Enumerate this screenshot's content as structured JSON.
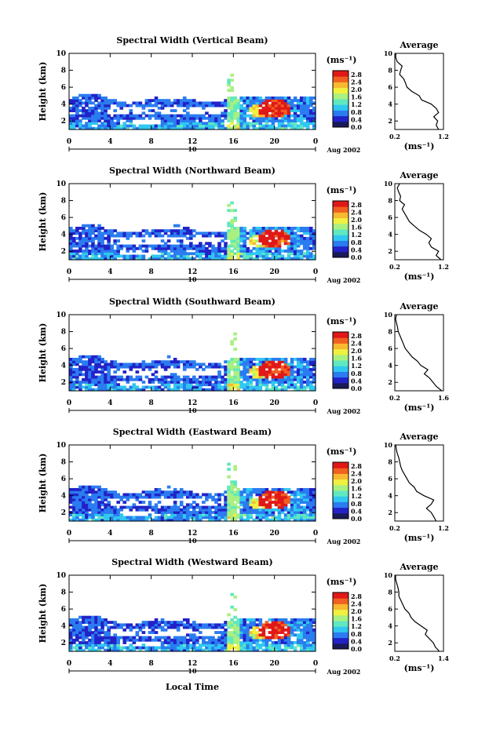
{
  "chart_data": {
    "type": "heatmap",
    "shared": {
      "x_label": "Local Time",
      "x_ticks": [
        "0",
        "4",
        "8",
        "12",
        "16",
        "20",
        "0"
      ],
      "x_range": [
        0,
        24
      ],
      "date_label": "10",
      "month_label": "Aug 2002",
      "y_label": "Height (km)",
      "y_ticks": [
        "2",
        "4",
        "6",
        "8",
        "10"
      ],
      "y_range": [
        1,
        10
      ],
      "colorbar_unit": "(ms⁻¹)",
      "colorbar_ticks": [
        "2.8",
        "2.4",
        "2.0",
        "1.6",
        "1.2",
        "0.8",
        "0.4",
        "0.0"
      ],
      "colorbar_range": [
        0,
        3.0
      ],
      "colors": [
        "#1a1a5a",
        "#2222c8",
        "#2a7cf0",
        "#30c8f0",
        "#60e8c0",
        "#a8f080",
        "#f0f040",
        "#f8b830",
        "#f06020",
        "#e01818"
      ],
      "profile_title": "Average",
      "profile_xlabel": "(ms⁻¹)"
    },
    "panels": [
      {
        "title": "Spectral Width (Vertical Beam)",
        "profile_xticks": [
          "0.2",
          "1.2"
        ],
        "profile_xrange": [
          0.2,
          1.2
        ],
        "profile": {
          "height": [
            1.0,
            1.5,
            2.0,
            2.5,
            3.0,
            3.5,
            4.0,
            4.5,
            5.0,
            5.5,
            6.0,
            6.5,
            7.0,
            7.5,
            8.0,
            8.5,
            9.0,
            9.5,
            10.0
          ],
          "value": [
            1.1,
            1.05,
            1.08,
            1.0,
            1.1,
            1.05,
            0.95,
            0.75,
            0.7,
            0.55,
            0.45,
            0.42,
            0.38,
            0.3,
            0.32,
            0.35,
            0.25,
            0.22,
            0.22
          ]
        }
      },
      {
        "title": "Spectral Width (Northward Beam)",
        "profile_xticks": [
          "0.2",
          "1.2"
        ],
        "profile_xrange": [
          0.2,
          1.2
        ],
        "profile": {
          "height": [
            1.0,
            1.5,
            2.0,
            2.5,
            3.0,
            3.5,
            4.0,
            4.5,
            5.0,
            5.5,
            6.0,
            6.5,
            7.0,
            7.5,
            8.0,
            8.5,
            9.0,
            9.5,
            10.0
          ],
          "value": [
            1.15,
            1.05,
            1.1,
            0.95,
            0.9,
            0.95,
            0.85,
            0.7,
            0.6,
            0.5,
            0.45,
            0.4,
            0.35,
            0.4,
            0.3,
            0.32,
            0.28,
            0.25,
            0.3
          ]
        }
      },
      {
        "title": "Spectral Width (Southward Beam)",
        "profile_xticks": [
          "0.2",
          "1.6"
        ],
        "profile_xrange": [
          0.2,
          1.6
        ],
        "profile": {
          "height": [
            1.0,
            1.5,
            2.0,
            2.5,
            3.0,
            3.5,
            4.0,
            4.5,
            5.0,
            5.5,
            6.0,
            6.5,
            7.0,
            7.5,
            8.0,
            8.5,
            9.0,
            9.5,
            10.0
          ],
          "value": [
            1.55,
            1.4,
            1.3,
            1.2,
            1.05,
            1.15,
            0.95,
            0.85,
            0.7,
            0.6,
            0.5,
            0.45,
            0.4,
            0.35,
            0.3,
            0.28,
            0.25,
            0.22,
            0.25
          ]
        }
      },
      {
        "title": "Spectral Width (Eastward Beam)",
        "profile_xticks": [
          "0.2",
          "1.2"
        ],
        "profile_xrange": [
          0.2,
          1.2
        ],
        "profile": {
          "height": [
            1.0,
            1.5,
            2.0,
            2.5,
            3.0,
            3.5,
            4.0,
            4.5,
            5.0,
            5.5,
            6.0,
            6.5,
            7.0,
            7.5,
            8.0,
            8.5,
            9.0,
            9.5,
            10.0
          ],
          "value": [
            1.05,
            1.0,
            0.95,
            0.85,
            0.95,
            1.0,
            0.8,
            0.65,
            0.6,
            0.5,
            0.45,
            0.4,
            0.35,
            0.32,
            0.3,
            0.28,
            0.25,
            0.23,
            0.22
          ]
        }
      },
      {
        "title": "Spectral Width (Westward Beam)",
        "profile_xticks": [
          "0.2",
          "1.4"
        ],
        "profile_xrange": [
          0.2,
          1.4
        ],
        "profile": {
          "height": [
            1.0,
            1.5,
            2.0,
            2.5,
            3.0,
            3.5,
            4.0,
            4.5,
            5.0,
            5.5,
            6.0,
            6.5,
            7.0,
            7.5,
            8.0,
            8.5,
            9.0,
            9.5,
            10.0
          ],
          "value": [
            1.3,
            1.2,
            1.15,
            1.05,
            0.95,
            1.0,
            0.85,
            0.7,
            0.6,
            0.55,
            0.45,
            0.4,
            0.35,
            0.3,
            0.3,
            0.28,
            0.25,
            0.22,
            0.22
          ]
        }
      }
    ]
  }
}
